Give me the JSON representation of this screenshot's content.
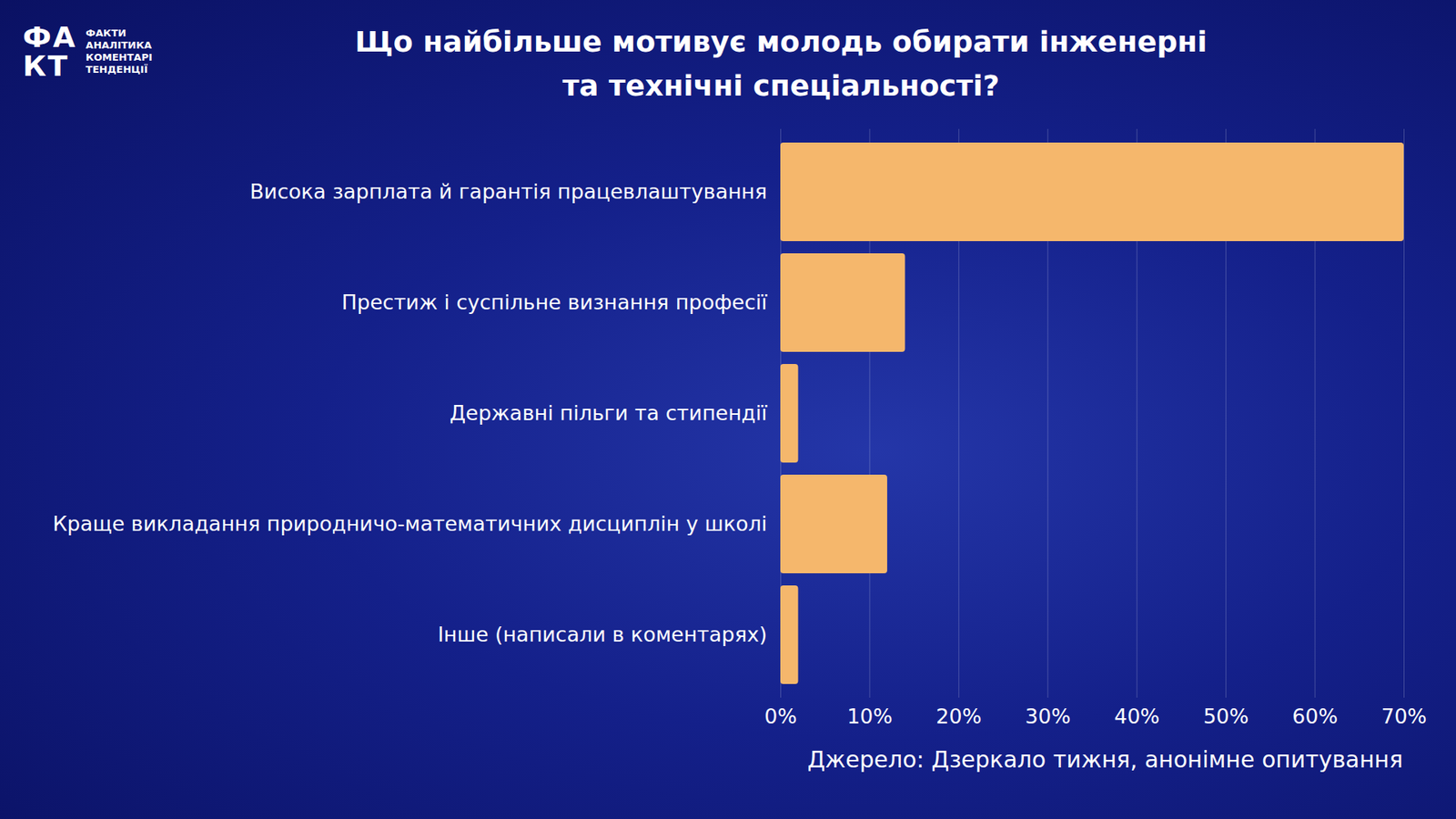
{
  "logo": {
    "mark": [
      "ФА",
      "КТ"
    ],
    "lines": [
      "ФАКТИ",
      "АНАЛІТИКА",
      "КОМЕНТАРІ",
      "ТЕНДЕНЦІЇ"
    ]
  },
  "chart_data": {
    "type": "bar",
    "orientation": "horizontal",
    "title": "Що найбільше мотивує молодь обирати інженерні та технічні спеціальності?",
    "caption": "Джерело: Дзеркало тижня, анонімне опитування",
    "categories": [
      "Висока зарплата й гарантія працевлаштування",
      "Престиж і суспільне визнання професії",
      "Державні пільги та стипендії",
      "Краще викладання природничо-математичних дисциплін у школі",
      "Інше (написали в коментарях)"
    ],
    "values": [
      70,
      14,
      2,
      12,
      2
    ],
    "color": "#f5b76c",
    "xlim": [
      0,
      70
    ],
    "xticks": [
      {
        "value": 0,
        "label": "0%"
      },
      {
        "value": 10,
        "label": "10%"
      },
      {
        "value": 20,
        "label": "20%"
      },
      {
        "value": 30,
        "label": "30%"
      },
      {
        "value": 40,
        "label": "40%"
      },
      {
        "value": 50,
        "label": "50%"
      },
      {
        "value": 60,
        "label": "60%"
      },
      {
        "value": 70,
        "label": "70%"
      }
    ],
    "grid": true,
    "data_labels": false
  }
}
